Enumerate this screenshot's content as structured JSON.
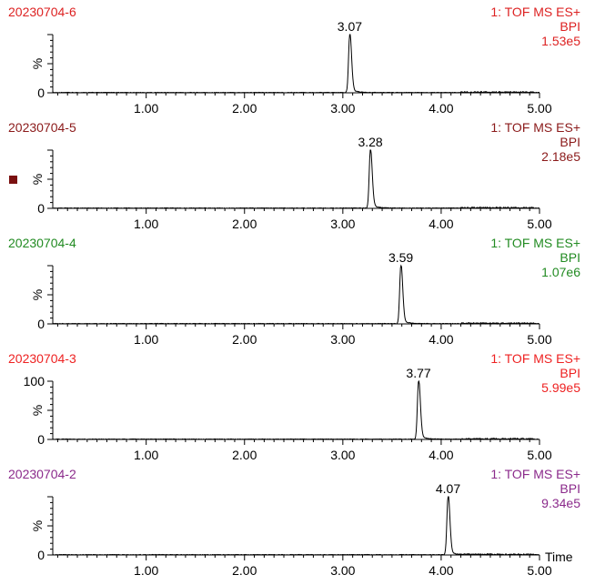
{
  "chart_data": [
    {
      "type": "line",
      "sample": "20230704-6",
      "function": "1: TOF MS ES+",
      "trace": "BPI",
      "intensity": "1.53e5",
      "peak_label": "3.07",
      "peak_rt": 3.07,
      "color": "#dd2222",
      "ylabel": "%",
      "y_ticks": [
        "0"
      ],
      "xlim": [
        0.05,
        5.0
      ],
      "x_ticks": [
        "1.00",
        "2.00",
        "3.00",
        "4.00",
        "5.00"
      ]
    },
    {
      "type": "line",
      "sample": "20230704-5",
      "function": "1: TOF MS ES+",
      "trace": "BPI",
      "intensity": "2.18e5",
      "peak_label": "3.28",
      "peak_rt": 3.28,
      "color": "#8b1a1a",
      "ylabel": "%",
      "y_ticks": [
        "0"
      ],
      "xlim": [
        0.05,
        5.0
      ],
      "x_ticks": [
        "1.00",
        "2.00",
        "3.00",
        "4.00",
        "5.00"
      ]
    },
    {
      "type": "line",
      "sample": "20230704-4",
      "function": "1: TOF MS ES+",
      "trace": "BPI",
      "intensity": "1.07e6",
      "peak_label": "3.59",
      "peak_rt": 3.59,
      "color": "#228b22",
      "ylabel": "%",
      "y_ticks": [
        "0"
      ],
      "xlim": [
        0.05,
        5.0
      ],
      "x_ticks": [
        "1.00",
        "2.00",
        "3.00",
        "4.00",
        "5.00"
      ]
    },
    {
      "type": "line",
      "sample": "20230704-3",
      "function": "1: TOF MS ES+",
      "trace": "BPI",
      "intensity": "5.99e5",
      "peak_label": "3.77",
      "peak_rt": 3.77,
      "color": "#ee2222",
      "ylabel": "%",
      "y_ticks": [
        "100",
        "0"
      ],
      "xlim": [
        0.05,
        5.0
      ],
      "x_ticks": [
        "1.00",
        "2.00",
        "3.00",
        "4.00",
        "5.00"
      ]
    },
    {
      "type": "line",
      "sample": "20230704-2",
      "function": "1: TOF MS ES+",
      "trace": "BPI",
      "intensity": "9.34e5",
      "peak_label": "4.07",
      "peak_rt": 4.07,
      "color": "#8b2a8b",
      "ylabel": "%",
      "y_ticks": [
        "0"
      ],
      "xlim": [
        0.05,
        5.0
      ],
      "x_ticks": [
        "1.00",
        "2.00",
        "3.00",
        "4.00",
        "5.00"
      ],
      "xlabel": "Time"
    }
  ],
  "marker_color": "#7a1010"
}
